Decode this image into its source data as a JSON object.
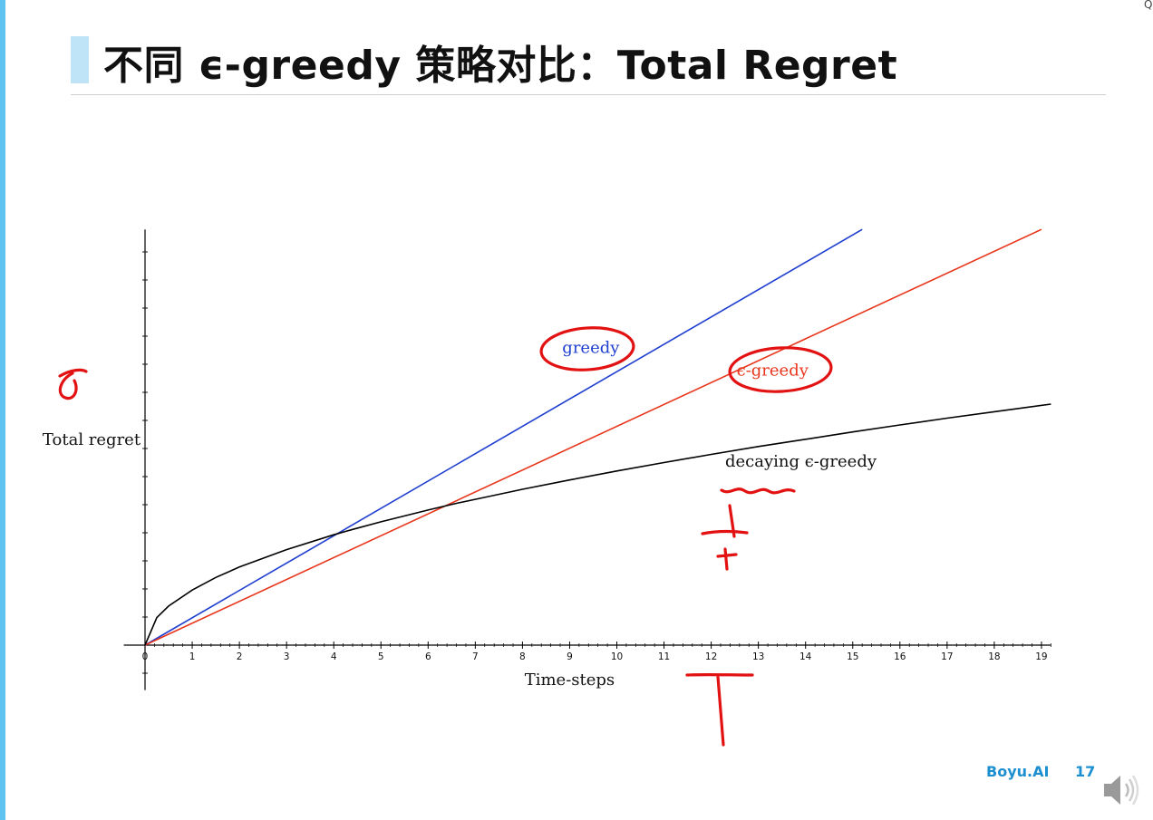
{
  "slide": {
    "title": "不同 ϵ-greedy 策略对比：Total Regret",
    "footer_brand": "Boyu.AI",
    "page_number": "17",
    "accent_color": "#5ec3f0",
    "brand_color": "#1b8fd0"
  },
  "chart_data": {
    "type": "line",
    "title": "",
    "xlabel": "Time-steps",
    "ylabel": "Total regret",
    "xlim": [
      0,
      19.2
    ],
    "ylim": [
      -1.6,
      14.8
    ],
    "x_ticks": [
      0,
      1,
      2,
      3,
      4,
      5,
      6,
      7,
      8,
      9,
      10,
      11,
      12,
      13,
      14,
      15,
      16,
      17,
      18,
      19
    ],
    "y_tick_labels_shown": false,
    "grid": false,
    "series": [
      {
        "name": "greedy",
        "color": "#1f3fd0",
        "x": [
          0,
          15.2
        ],
        "y": [
          0,
          14.8
        ]
      },
      {
        "name": "ϵ-greedy",
        "color": "#e8361c",
        "x": [
          0,
          19
        ],
        "y": [
          0,
          14.8
        ]
      },
      {
        "name": "decaying ϵ-greedy",
        "color": "#000000",
        "x": [
          0,
          0.25,
          0.5,
          1,
          1.5,
          2,
          3,
          4,
          4.4,
          5,
          6,
          6.6,
          7,
          8,
          9,
          10,
          11,
          12,
          13,
          14,
          15,
          16,
          17,
          18,
          19.2
        ],
        "y": [
          0,
          0.98,
          1.39,
          1.96,
          2.41,
          2.78,
          3.4,
          3.93,
          4.12,
          4.39,
          4.81,
          5.05,
          5.19,
          5.55,
          5.88,
          6.2,
          6.5,
          6.79,
          7.07,
          7.33,
          7.59,
          7.84,
          8.08,
          8.31,
          8.58
        ]
      }
    ],
    "annotations": [
      {
        "text": "greedy",
        "x": 9.45,
        "y": 10.4,
        "color": "#1f3fd0"
      },
      {
        "text": "ϵ-greedy",
        "x": 13.3,
        "y": 9.6,
        "color": "#e8361c"
      },
      {
        "text": "decaying ϵ-greedy",
        "x": 13.9,
        "y": 6.35,
        "color": "#111111"
      }
    ]
  }
}
